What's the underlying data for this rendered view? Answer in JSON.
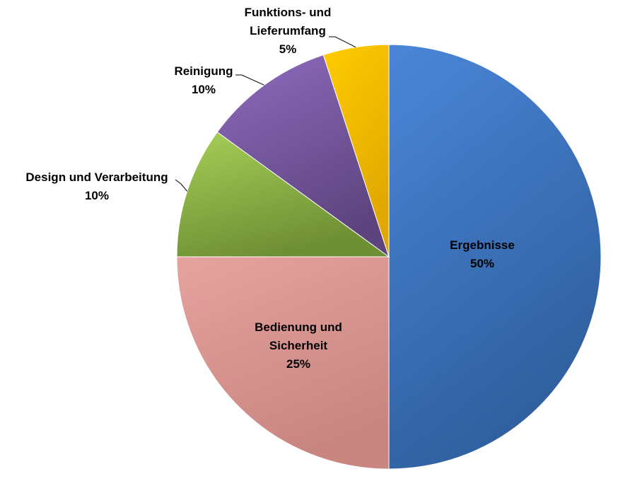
{
  "chart_data": {
    "type": "pie",
    "title": "",
    "slices": [
      {
        "label": "Ergebnisse",
        "label_lines": [
          "Ergebnisse"
        ],
        "percent_label": "50%",
        "value": 50,
        "color": "#4a86d8",
        "color_dark": "#2f5f9e"
      },
      {
        "label": "Bedienung und Sicherheit",
        "label_lines": [
          "Bedienung und",
          "Sicherheit"
        ],
        "percent_label": "25%",
        "value": 25,
        "color": "#e6a29e",
        "color_dark": "#c98580"
      },
      {
        "label": "Design und Verarbeitung",
        "label_lines": [
          "Design und Verarbeitung"
        ],
        "percent_label": "10%",
        "value": 10,
        "color": "#a6cf58",
        "color_dark": "#6f8f34"
      },
      {
        "label": "Reinigung",
        "label_lines": [
          "Reinigung"
        ],
        "percent_label": "10%",
        "value": 10,
        "color": "#8e6bbe",
        "color_dark": "#5e447f"
      },
      {
        "label": "Funktions- und Lieferumfang",
        "label_lines": [
          "Funktions-  und",
          "Lieferumfang"
        ],
        "percent_label": "5%",
        "value": 5,
        "color": "#ffcc00",
        "color_dark": "#e0a800"
      }
    ],
    "start_angle_deg": 0,
    "direction": "clockwise",
    "legend": "none",
    "label_placement": [
      "inside",
      "inside",
      "outside-left",
      "outside-left",
      "outside-top"
    ]
  }
}
